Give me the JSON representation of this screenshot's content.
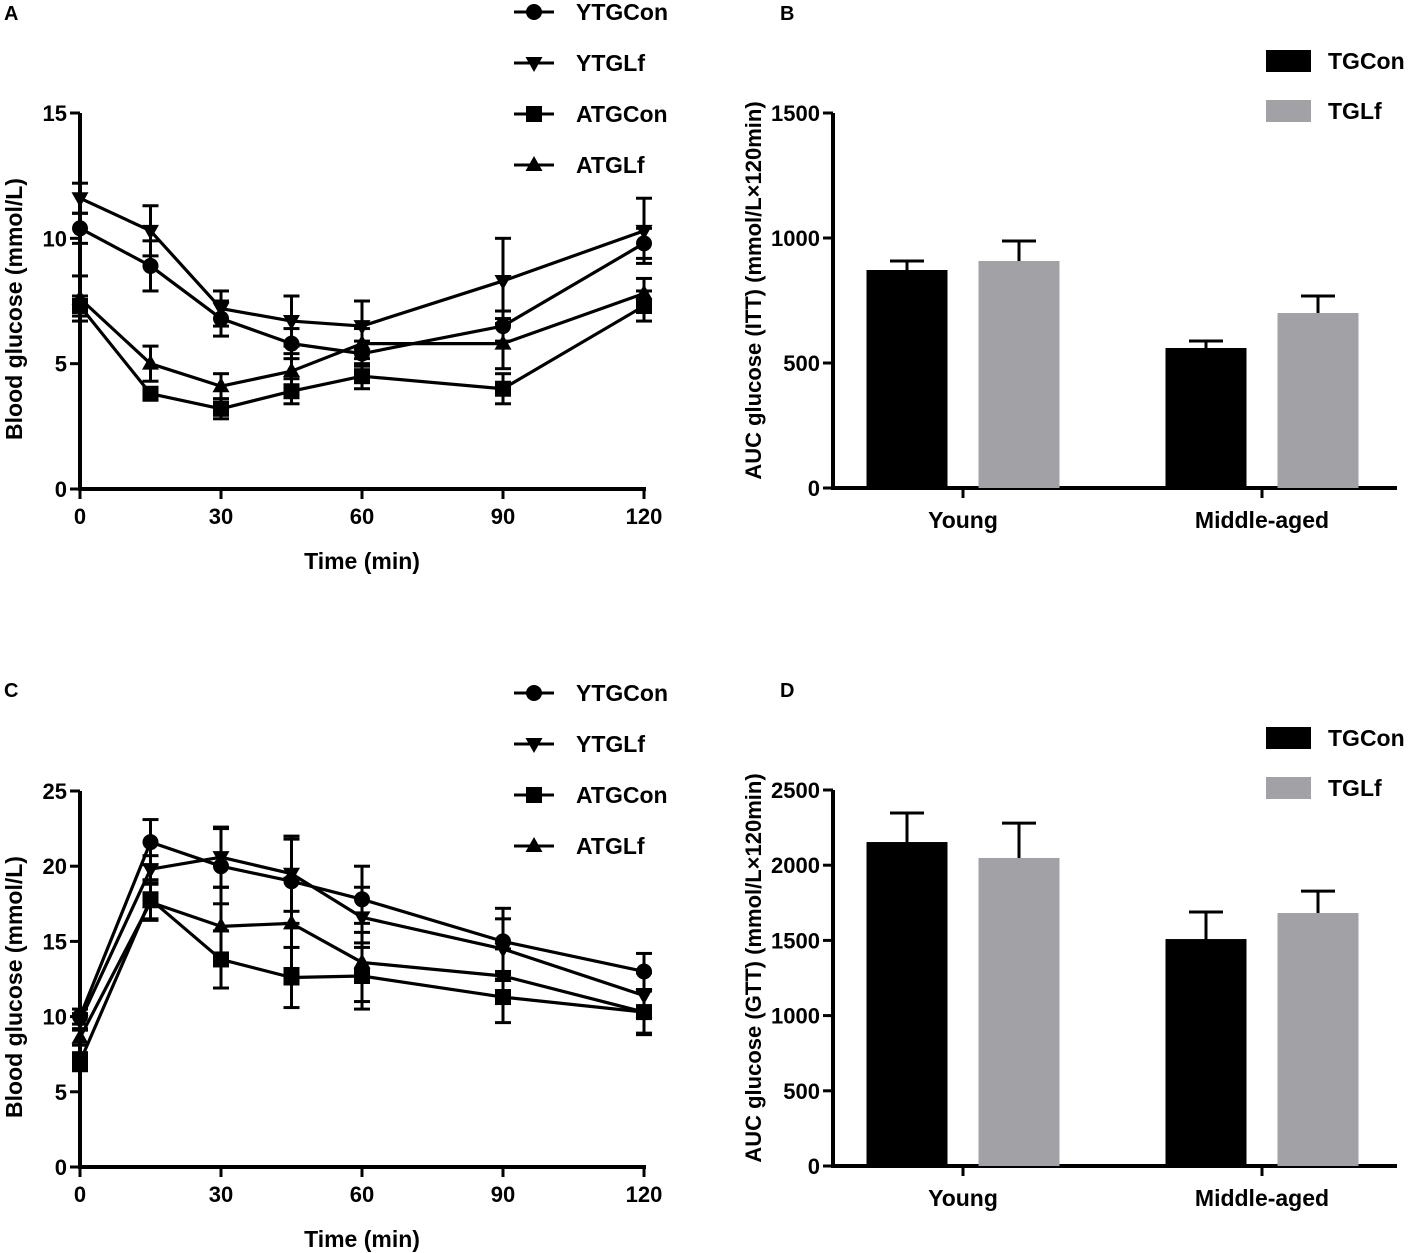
{
  "chart_data": [
    {
      "panel": "A",
      "type": "line",
      "xlabel": "Time (min)",
      "ylabel": "Blood glucose (mmol/L)",
      "x": [
        0,
        15,
        30,
        45,
        60,
        90,
        120
      ],
      "xticks": [
        "0",
        "30",
        "60",
        "90",
        "120"
      ],
      "xtick_values": [
        0,
        30,
        60,
        90,
        120
      ],
      "yticks": [
        "0",
        "5",
        "10",
        "15"
      ],
      "ytick_values": [
        0,
        5,
        10,
        15
      ],
      "xlim": [
        0,
        120
      ],
      "ylim": [
        0,
        15
      ],
      "grid": false,
      "legend_position": "top-right",
      "series": [
        {
          "name": "YTGCon",
          "marker": "circle",
          "values": [
            10.4,
            8.9,
            6.8,
            5.8,
            5.4,
            6.5,
            9.8
          ],
          "errors": [
            0.6,
            1.0,
            0.7,
            0.6,
            0.5,
            0.6,
            0.6
          ]
        },
        {
          "name": "YTGLf",
          "marker": "triangle-down",
          "values": [
            11.6,
            10.3,
            7.2,
            6.7,
            6.5,
            8.3,
            10.3
          ],
          "errors": [
            0.6,
            1.0,
            0.7,
            1.0,
            1.0,
            1.7,
            1.3
          ]
        },
        {
          "name": "ATGCon",
          "marker": "square",
          "values": [
            7.3,
            3.8,
            3.2,
            3.9,
            4.5,
            4.0,
            7.3
          ],
          "errors": [
            0.4,
            0.2,
            0.4,
            0.5,
            0.5,
            0.6,
            0.6
          ]
        },
        {
          "name": "ATGLf",
          "marker": "triangle-up",
          "values": [
            7.6,
            5.0,
            4.1,
            4.7,
            5.8,
            5.8,
            7.8
          ],
          "errors": [
            0.9,
            0.7,
            0.5,
            0.7,
            0.6,
            1.0,
            0.6
          ]
        }
      ]
    },
    {
      "panel": "B",
      "type": "bar",
      "categories": [
        "Young",
        "Middle-aged"
      ],
      "ylabel": "AUC glucose (ITT) (mmol/L×120min)",
      "yticks": [
        "0",
        "500",
        "1000",
        "1500"
      ],
      "ytick_values": [
        0,
        500,
        1000,
        1500
      ],
      "ylim": [
        0,
        1500
      ],
      "grid": false,
      "legend_position": "top-right",
      "series": [
        {
          "name": "TGCon",
          "color": "#000000",
          "values": [
            872,
            560
          ],
          "errors": [
            36,
            28
          ]
        },
        {
          "name": "TGLf",
          "color": "#a2a2a6",
          "values": [
            908,
            700
          ],
          "errors": [
            80,
            68
          ]
        }
      ]
    },
    {
      "panel": "C",
      "type": "line",
      "xlabel": "Time (min)",
      "ylabel": "Blood glucose (mmol/L)",
      "x": [
        0,
        15,
        30,
        45,
        60,
        90,
        120
      ],
      "xticks": [
        "0",
        "30",
        "60",
        "90",
        "120"
      ],
      "xtick_values": [
        0,
        30,
        60,
        90,
        120
      ],
      "yticks": [
        "0",
        "5",
        "10",
        "15",
        "20",
        "25"
      ],
      "ytick_values": [
        0,
        5,
        10,
        15,
        20,
        25
      ],
      "xlim": [
        0,
        120
      ],
      "ylim": [
        0,
        25
      ],
      "grid": false,
      "legend_position": "top-right",
      "series": [
        {
          "name": "YTGCon",
          "marker": "circle",
          "values": [
            10.0,
            21.6,
            20.0,
            19.0,
            17.8,
            15.0,
            13.0
          ],
          "errors": [
            0.5,
            1.5,
            2.5,
            2.8,
            2.2,
            2.2,
            1.2
          ]
        },
        {
          "name": "YTGLf",
          "marker": "triangle-down",
          "values": [
            9.7,
            19.8,
            20.6,
            19.5,
            16.6,
            14.5,
            11.4
          ],
          "errors": [
            0.5,
            0.9,
            2.0,
            2.5,
            2.0,
            2.0,
            1.5
          ]
        },
        {
          "name": "ATGCon",
          "marker": "square",
          "values": [
            7.0,
            17.8,
            13.8,
            12.6,
            12.7,
            11.3,
            10.3
          ],
          "errors": [
            0.6,
            1.3,
            1.9,
            2.0,
            2.2,
            1.7,
            1.5
          ]
        },
        {
          "name": "ATGLf",
          "marker": "triangle-up",
          "values": [
            8.6,
            17.6,
            16.0,
            16.2,
            13.6,
            12.7,
            10.3
          ],
          "errors": [
            0.5,
            1.2,
            2.6,
            3.0,
            2.6,
            1.8,
            1.4
          ]
        }
      ]
    },
    {
      "panel": "D",
      "type": "bar",
      "categories": [
        "Young",
        "Middle-aged"
      ],
      "ylabel": "AUC glucose (GTT) (mmol/L×120min)",
      "yticks": [
        "0",
        "500",
        "1000",
        "1500",
        "2000",
        "2500"
      ],
      "ytick_values": [
        0,
        500,
        1000,
        1500,
        2000,
        2500
      ],
      "ylim": [
        0,
        2500
      ],
      "grid": false,
      "legend_position": "top-right",
      "series": [
        {
          "name": "TGCon",
          "color": "#000000",
          "values": [
            2154,
            1509
          ],
          "errors": [
            193,
            180
          ]
        },
        {
          "name": "TGLf",
          "color": "#a2a2a6",
          "values": [
            2048,
            1682
          ],
          "errors": [
            232,
            146
          ]
        }
      ]
    }
  ],
  "panel_labels": [
    "A",
    "B",
    "C",
    "D"
  ]
}
